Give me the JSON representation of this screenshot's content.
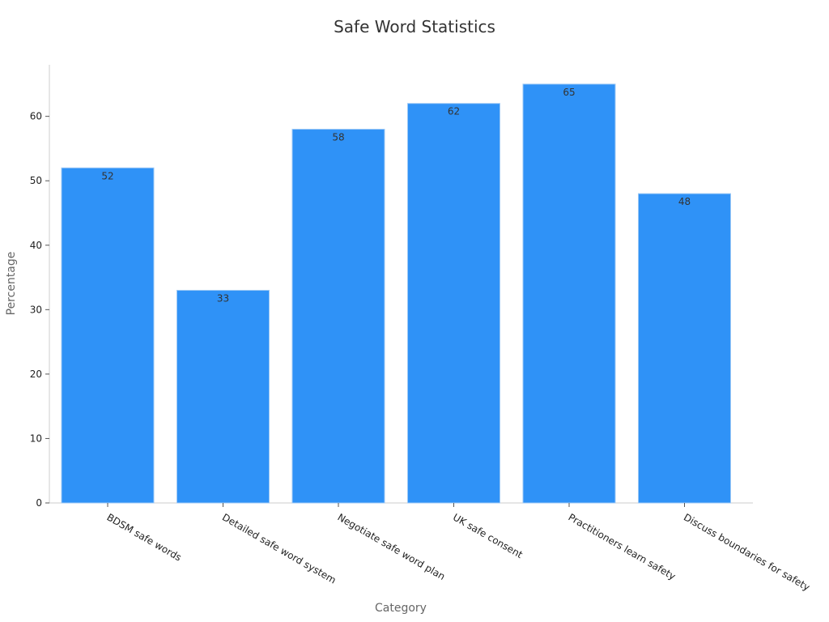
{
  "chart_data": {
    "type": "bar",
    "title": "Safe Word Statistics",
    "xlabel": "Category",
    "ylabel": "Percentage",
    "categories": [
      "BDSM safe words",
      "Detailed safe word system",
      "Negotiate safe word plan",
      "UK safe consent",
      "Practitioners learn safety",
      "Discuss boundaries for safety"
    ],
    "values": [
      52,
      33,
      58,
      62,
      65,
      48
    ],
    "ylim": [
      0,
      68
    ],
    "yticks": [
      0,
      10,
      20,
      30,
      40,
      50,
      60
    ],
    "bar_color": "#2f92f7",
    "bar_edge_color": "#9cc8f5",
    "grid": false,
    "legend": "none",
    "data_labels": true
  }
}
